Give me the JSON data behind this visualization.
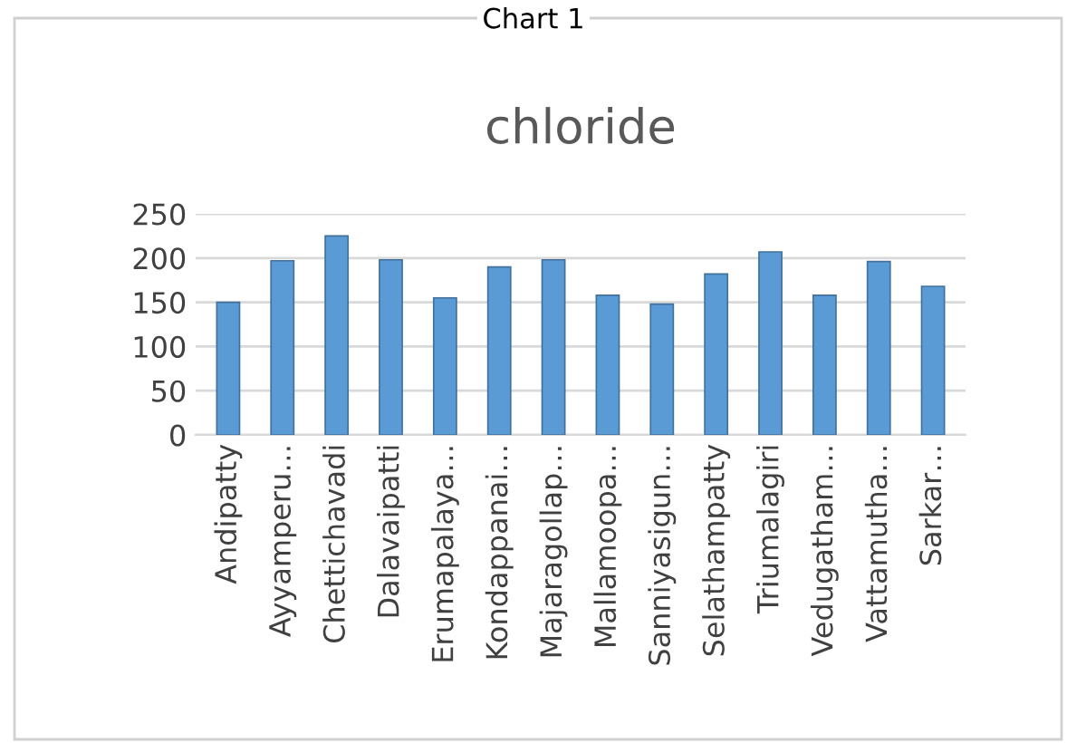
{
  "chart_data": {
    "type": "bar",
    "title": "chloride",
    "annotations": [
      "Chart 1"
    ],
    "categories": [
      "Andipatty",
      "Ayyamperu…",
      "Chettichavadi",
      "Dalavaipatti",
      "Erumapalaya…",
      "Kondappanai…",
      "Majaragollap…",
      "Mallamoopa…",
      "Sanniyasigun…",
      "Selathampatty",
      "Triumalagiri",
      "Vedugatham…",
      "Vattamutha…",
      "Sarkar…"
    ],
    "values": [
      150,
      197,
      225,
      198,
      155,
      190,
      198,
      158,
      148,
      182,
      207,
      158,
      196,
      168
    ],
    "color": "#5b9bd5",
    "ylim": [
      0,
      250
    ],
    "yticks": [
      0,
      50,
      100,
      150,
      200,
      250
    ],
    "grid": "y"
  }
}
